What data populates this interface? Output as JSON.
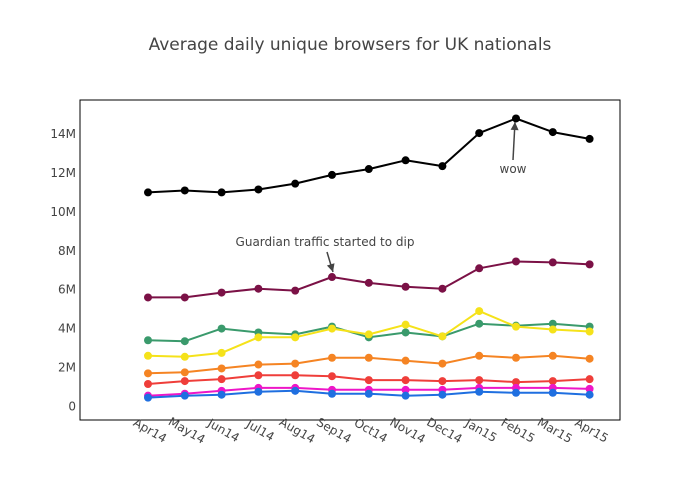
{
  "chart_data": {
    "type": "line",
    "title": "Average daily unique browsers for UK nationals",
    "xlabel": "",
    "ylabel": "",
    "categories": [
      "Apr14",
      "May14",
      "Jun14",
      "Jul14",
      "Aug14",
      "Sep14",
      "Oct14",
      "Nov14",
      "Dec14",
      "Jan15",
      "Feb15",
      "Mar15",
      "Apr15"
    ],
    "ylim": [
      -700000,
      15750000
    ],
    "y_ticks": [
      0,
      2000000,
      4000000,
      6000000,
      8000000,
      10000000,
      12000000,
      14000000
    ],
    "y_tick_labels": [
      "0",
      "2M",
      "4M",
      "6M",
      "8M",
      "10M",
      "12M",
      "14M"
    ],
    "grid": false,
    "legend": "none",
    "series": [
      {
        "color": "#000000",
        "values": [
          11000000,
          11100000,
          11000000,
          11150000,
          11450000,
          11900000,
          12200000,
          12650000,
          12350000,
          14050000,
          14800000,
          14100000,
          13750000
        ]
      },
      {
        "color": "#7b1146",
        "values": [
          5600000,
          5600000,
          5850000,
          6050000,
          5950000,
          6650000,
          6350000,
          6150000,
          6050000,
          7100000,
          7450000,
          7400000,
          7300000
        ]
      },
      {
        "color": "#3a9a6c",
        "values": [
          3400000,
          3350000,
          4000000,
          3800000,
          3700000,
          4100000,
          3550000,
          3800000,
          3600000,
          4250000,
          4150000,
          4250000,
          4100000
        ]
      },
      {
        "color": "#f5e21a",
        "values": [
          2600000,
          2550000,
          2750000,
          3550000,
          3550000,
          4000000,
          3700000,
          4200000,
          3600000,
          4900000,
          4100000,
          3950000,
          3850000
        ]
      },
      {
        "color": "#f58423",
        "values": [
          1700000,
          1750000,
          1950000,
          2150000,
          2200000,
          2500000,
          2500000,
          2350000,
          2200000,
          2600000,
          2500000,
          2600000,
          2450000
        ]
      },
      {
        "color": "#ef3e3a",
        "values": [
          1150000,
          1300000,
          1400000,
          1600000,
          1600000,
          1550000,
          1350000,
          1350000,
          1300000,
          1350000,
          1250000,
          1300000,
          1400000
        ]
      },
      {
        "color": "#ee16c8",
        "values": [
          550000,
          650000,
          800000,
          950000,
          950000,
          850000,
          850000,
          850000,
          850000,
          950000,
          950000,
          950000,
          900000
        ]
      },
      {
        "color": "#1f6fe0",
        "values": [
          450000,
          550000,
          600000,
          750000,
          800000,
          650000,
          650000,
          550000,
          600000,
          750000,
          700000,
          700000,
          600000
        ]
      }
    ],
    "annotations": [
      {
        "text": "Guardian traffic started to dip",
        "x": "Sep14",
        "y": 6650000
      },
      {
        "text": "wow",
        "x": "Feb15",
        "y": 14800000
      }
    ]
  }
}
